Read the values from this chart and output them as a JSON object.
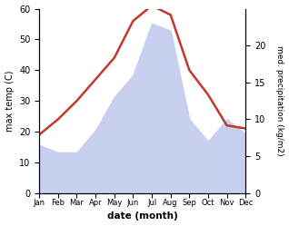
{
  "months": [
    "Jan",
    "Feb",
    "Mar",
    "Apr",
    "May",
    "Jun",
    "Jul",
    "Aug",
    "Sep",
    "Oct",
    "Nov",
    "Dec"
  ],
  "temp": [
    19,
    24,
    30,
    37,
    44,
    56,
    61,
    58,
    40,
    32,
    22,
    21
  ],
  "precip": [
    6.5,
    5.5,
    5.5,
    8.5,
    13,
    16,
    23,
    22,
    10,
    7,
    10,
    8
  ],
  "temp_color": "#c0392b",
  "precip_fill_color": "#c8d0f0",
  "temp_ylim": [
    0,
    60
  ],
  "precip_ylim": [
    0,
    25
  ],
  "precip_yticks": [
    0,
    5,
    10,
    15,
    20
  ],
  "temp_yticks": [
    0,
    10,
    20,
    30,
    40,
    50,
    60
  ],
  "ylabel_left": "max temp (C)",
  "ylabel_right": "med. precipitation (kg/m2)",
  "xlabel": "date (month)",
  "line_width": 1.8,
  "bg_color": "#ffffff"
}
